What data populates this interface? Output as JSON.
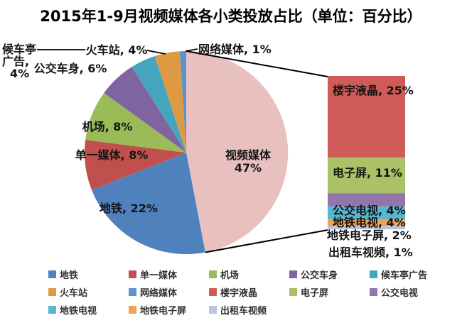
{
  "chart_data": {
    "type": "bar-of-pie",
    "title": "2015年1-9月视频媒体各小类投放占比（单位：百分比）",
    "unit_label": "百分比",
    "legend_position": "bottom",
    "pie_slices": [
      {
        "name": "视频媒体",
        "value": 47,
        "color": "#E8C0C0"
      },
      {
        "name": "地铁",
        "value": 22,
        "color": "#4F81BD"
      },
      {
        "name": "单一媒体",
        "value": 8,
        "color": "#C0504D"
      },
      {
        "name": "机场",
        "value": 8,
        "color": "#9BBB59"
      },
      {
        "name": "公交车身",
        "value": 6,
        "color": "#8064A2"
      },
      {
        "name": "候车亭广告",
        "value": 4,
        "color": "#45A5BF"
      },
      {
        "name": "火车站",
        "value": 4,
        "color": "#DE9A43"
      },
      {
        "name": "网络媒体",
        "value": 1,
        "color": "#6191CB"
      }
    ],
    "bar_parent": "视频媒体",
    "bar_segments": [
      {
        "name": "楼宇液晶",
        "value": 25,
        "color": "#CF5B58"
      },
      {
        "name": "电子屏",
        "value": 11,
        "color": "#ABC168"
      },
      {
        "name": "公交电视",
        "value": 4,
        "color": "#9175AD"
      },
      {
        "name": "地铁电视",
        "value": 4,
        "color": "#58B6D1"
      },
      {
        "name": "地铁电子屏",
        "value": 2,
        "color": "#F0A44E"
      },
      {
        "name": "出租车视频",
        "value": 1,
        "color": "#B9C6DF"
      }
    ]
  }
}
